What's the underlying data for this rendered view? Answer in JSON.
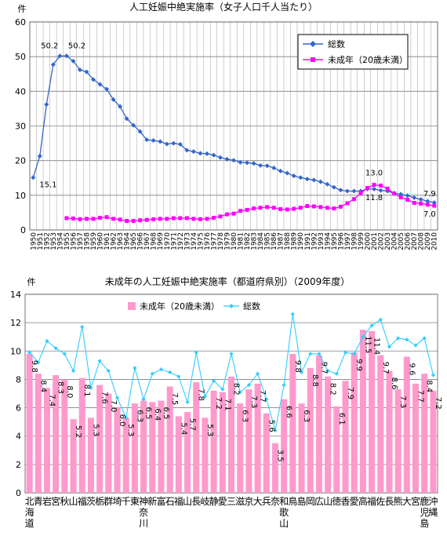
{
  "chart_data": [
    {
      "type": "line",
      "title": "人工妊娠中絶実施率（女子人口千人当たり）",
      "unit_label": "件",
      "ylim": [
        0,
        60
      ],
      "yticks": [
        0,
        10,
        20,
        30,
        40,
        50,
        60
      ],
      "grid": true,
      "legend_position": "top-right",
      "x": [
        "1950",
        "1951",
        "1952",
        "1953",
        "1954",
        "1955",
        "1956",
        "1957",
        "1958",
        "1959",
        "1960",
        "1961",
        "1962",
        "1963",
        "1964",
        "1965",
        "1966",
        "1967",
        "1968",
        "1969",
        "1970",
        "1971",
        "1972",
        "1973",
        "1974",
        "1975",
        "1976",
        "1977",
        "1978",
        "1979",
        "1980",
        "1981",
        "1982",
        "1983",
        "1984",
        "1985",
        "1986",
        "1987",
        "1988",
        "1989",
        "1990",
        "1991",
        "1992",
        "1993",
        "1994",
        "1995",
        "1996",
        "1997",
        "1998",
        "1999",
        "2000",
        "2001",
        "2002",
        "2003",
        "2004",
        "2005",
        "2006",
        "2007",
        "2008",
        "2009",
        "2010"
      ],
      "series": [
        {
          "name": "総数",
          "color": "#3366cc",
          "marker": "diamond",
          "values": [
            15.1,
            21.3,
            36.2,
            47.7,
            50.2,
            50.2,
            48.7,
            46.2,
            45.6,
            43.4,
            42.0,
            40.6,
            37.6,
            35.6,
            32.1,
            30.2,
            28.4,
            26.0,
            25.8,
            25.5,
            24.8,
            25.0,
            24.7,
            23.0,
            22.6,
            22.1,
            22.0,
            21.6,
            20.9,
            20.4,
            20.1,
            19.5,
            19.4,
            19.2,
            18.6,
            18.5,
            17.9,
            17.0,
            16.4,
            15.6,
            15.1,
            14.7,
            14.4,
            13.9,
            13.2,
            12.3,
            11.5,
            11.2,
            11.2,
            11.2,
            11.8,
            11.8,
            11.4,
            11.2,
            10.6,
            10.3,
            9.9,
            9.3,
            8.8,
            8.3,
            7.9
          ]
        },
        {
          "name": "未成年（20歳未満）",
          "color": "#ff00ff",
          "marker": "square",
          "values": [
            null,
            null,
            null,
            null,
            null,
            3.4,
            3.3,
            3.1,
            3.2,
            3.2,
            3.5,
            3.7,
            3.2,
            3.0,
            2.6,
            2.6,
            2.8,
            2.9,
            3.1,
            3.2,
            3.2,
            3.4,
            3.4,
            3.4,
            3.2,
            3.1,
            3.2,
            3.5,
            3.9,
            4.5,
            4.7,
            5.5,
            5.8,
            6.2,
            6.4,
            6.6,
            6.4,
            6.0,
            5.9,
            6.1,
            6.4,
            6.9,
            6.8,
            6.6,
            6.4,
            6.2,
            6.7,
            7.7,
            8.9,
            10.6,
            12.1,
            13.0,
            12.8,
            11.9,
            10.5,
            9.4,
            8.7,
            7.8,
            7.6,
            7.3,
            7.0
          ]
        }
      ],
      "data_labels": [
        {
          "text": "15.1",
          "series": 0,
          "index": 0
        },
        {
          "text": "50.2",
          "series": 0,
          "index": 4
        },
        {
          "text": "50.2",
          "series": 0,
          "index": 5
        },
        {
          "text": "13.0",
          "series": 1,
          "index": 51
        },
        {
          "text": "11.8",
          "series": 0,
          "index": 51
        },
        {
          "text": "7.9",
          "series": 0,
          "index": 60
        },
        {
          "text": "7.0",
          "series": 1,
          "index": 60
        }
      ]
    },
    {
      "type": "bar",
      "title": "未成年の人工妊娠中絶実施率（都道府県別）（2009年度）",
      "unit_label": "件",
      "ylim": [
        0,
        14
      ],
      "yticks": [
        0,
        2,
        4,
        6,
        8,
        10,
        12,
        14
      ],
      "grid": true,
      "legend_position": "top",
      "categories": [
        "北海道",
        "青森",
        "岩手",
        "宮城",
        "秋田",
        "山形",
        "福島",
        "茨城",
        "栃木",
        "群馬",
        "埼玉",
        "千葉",
        "東京",
        "神奈川",
        "新潟",
        "富山",
        "石川",
        "福井",
        "山梨",
        "長野",
        "岐阜",
        "静岡",
        "愛知",
        "三重",
        "滋賀",
        "京都",
        "大阪",
        "兵庫",
        "奈良",
        "和歌山",
        "鳥取",
        "島根",
        "岡山",
        "広島",
        "山口",
        "徳島",
        "香川",
        "愛媛",
        "高知",
        "福岡",
        "佐賀",
        "長崎",
        "熊本",
        "大分",
        "宮崎",
        "鹿児島",
        "沖縄"
      ],
      "category_labels": [
        "北\n海\n道",
        "青",
        "岩",
        "宮",
        "秋",
        "山",
        "福",
        "茨",
        "栃",
        "群",
        "埼",
        "千",
        "東",
        "神\n奈\n川",
        "新",
        "富",
        "石",
        "福",
        "山",
        "長",
        "岐",
        "静",
        "愛",
        "三",
        "滋",
        "京",
        "大",
        "兵",
        "奈",
        "和\n歌\n山",
        "鳥",
        "島",
        "岡",
        "広",
        "山",
        "徳",
        "香",
        "愛",
        "高",
        "福",
        "佐",
        "長",
        "熊",
        "大",
        "宮",
        "鹿\n児\n島",
        "沖\n縄"
      ],
      "series": [
        {
          "name": "未成年（20歳未満）",
          "type": "bar",
          "color": "#ff99cc",
          "values": [
            9.8,
            8.4,
            7.4,
            8.3,
            8.0,
            5.2,
            8.1,
            5.3,
            7.6,
            7.0,
            6.0,
            5.3,
            6.3,
            6.5,
            6.4,
            6.5,
            7.5,
            5.4,
            5.7,
            7.8,
            5.3,
            7.2,
            7.1,
            8.2,
            6.3,
            7.3,
            7.7,
            5.6,
            3.5,
            6.6,
            9.8,
            6.3,
            8.8,
            9.7,
            8.2,
            6.1,
            7.9,
            9.9,
            11.5,
            11.4,
            9.7,
            8.6,
            7.3,
            9.6,
            7.7,
            8.4,
            7.2
          ]
        },
        {
          "name": "総数",
          "type": "line",
          "color": "#33ccff",
          "marker": "diamond",
          "values": [
            9.9,
            9.2,
            10.7,
            10.2,
            9.8,
            8.6,
            11.7,
            7.4,
            9.3,
            8.6,
            6.7,
            5.3,
            8.8,
            6.6,
            8.4,
            8.7,
            8.5,
            8.2,
            6.4,
            9.9,
            6.8,
            7.9,
            7.3,
            9.8,
            7.1,
            7.6,
            8.4,
            6.6,
            4.4,
            7.6,
            12.6,
            8.5,
            9.8,
            9.8,
            8.6,
            8.4,
            9.9,
            9.8,
            11.0,
            11.8,
            12.2,
            10.3,
            10.9,
            10.8,
            10.4,
            10.9,
            8.3
          ]
        }
      ]
    }
  ]
}
